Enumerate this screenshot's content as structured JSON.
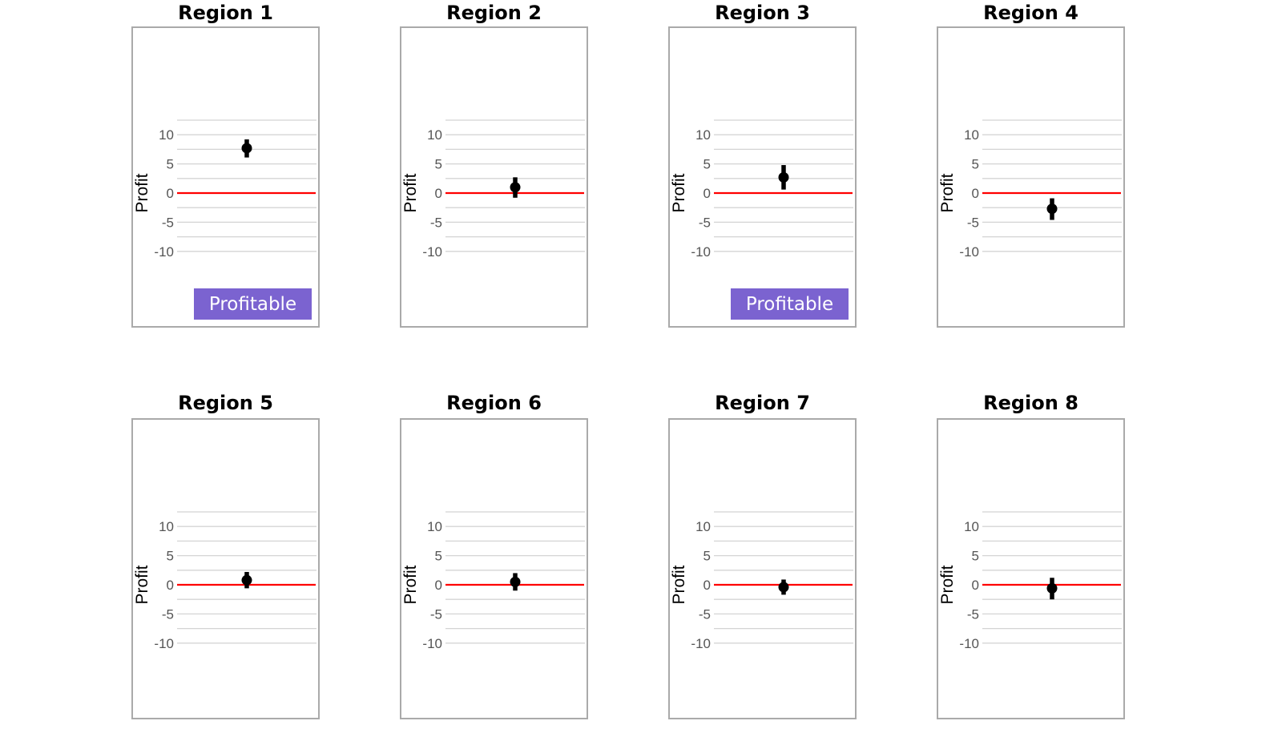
{
  "chart_data": [
    {
      "type": "errorbar",
      "title": "Region 1",
      "ylabel": "Profit",
      "ylim": [
        -11.5,
        13.5
      ],
      "yticks": [
        "10",
        "5",
        "0",
        "-5",
        "-10"
      ],
      "grid": true,
      "reference_line": {
        "y": 0,
        "color": "#ff0000"
      },
      "point": {
        "estimate": 7.7,
        "lower": 6.1,
        "upper": 9.2
      },
      "badge": "Profitable"
    },
    {
      "type": "errorbar",
      "title": "Region 2",
      "ylabel": "Profit",
      "ylim": [
        -11.5,
        13.5
      ],
      "yticks": [
        "10",
        "5",
        "0",
        "-5",
        "-10"
      ],
      "grid": true,
      "reference_line": {
        "y": 0,
        "color": "#ff0000"
      },
      "point": {
        "estimate": 1.0,
        "lower": -0.8,
        "upper": 2.7
      },
      "badge": ""
    },
    {
      "type": "errorbar",
      "title": "Region 3",
      "ylabel": "Profit",
      "ylim": [
        -11.5,
        13.5
      ],
      "yticks": [
        "10",
        "5",
        "0",
        "-5",
        "-10"
      ],
      "grid": true,
      "reference_line": {
        "y": 0,
        "color": "#ff0000"
      },
      "point": {
        "estimate": 2.7,
        "lower": 0.6,
        "upper": 4.8
      },
      "badge": "Profitable"
    },
    {
      "type": "errorbar",
      "title": "Region 4",
      "ylabel": "Profit",
      "ylim": [
        -11.5,
        13.5
      ],
      "yticks": [
        "10",
        "5",
        "0",
        "-5",
        "-10"
      ],
      "grid": true,
      "reference_line": {
        "y": 0,
        "color": "#ff0000"
      },
      "point": {
        "estimate": -2.7,
        "lower": -4.6,
        "upper": -0.9
      },
      "badge": ""
    },
    {
      "type": "errorbar",
      "title": "Region 5",
      "ylabel": "Profit",
      "ylim": [
        -11.5,
        13.5
      ],
      "yticks": [
        "10",
        "5",
        "0",
        "-5",
        "-10"
      ],
      "grid": true,
      "reference_line": {
        "y": 0,
        "color": "#ff0000"
      },
      "point": {
        "estimate": 0.8,
        "lower": -0.6,
        "upper": 2.2
      },
      "badge": ""
    },
    {
      "type": "errorbar",
      "title": "Region 6",
      "ylabel": "Profit",
      "ylim": [
        -11.5,
        13.5
      ],
      "yticks": [
        "10",
        "5",
        "0",
        "-5",
        "-10"
      ],
      "grid": true,
      "reference_line": {
        "y": 0,
        "color": "#ff0000"
      },
      "point": {
        "estimate": 0.5,
        "lower": -1.0,
        "upper": 2.0
      },
      "badge": ""
    },
    {
      "type": "errorbar",
      "title": "Region 7",
      "ylabel": "Profit",
      "ylim": [
        -11.5,
        13.5
      ],
      "yticks": [
        "10",
        "5",
        "0",
        "-5",
        "-10"
      ],
      "grid": true,
      "reference_line": {
        "y": 0,
        "color": "#ff0000"
      },
      "point": {
        "estimate": -0.4,
        "lower": -1.7,
        "upper": 0.9
      },
      "badge": ""
    },
    {
      "type": "errorbar",
      "title": "Region 8",
      "ylabel": "Profit",
      "ylim": [
        -11.5,
        13.5
      ],
      "yticks": [
        "10",
        "5",
        "0",
        "-5",
        "-10"
      ],
      "grid": true,
      "reference_line": {
        "y": 0,
        "color": "#ff0000"
      },
      "point": {
        "estimate": -0.6,
        "lower": -2.5,
        "upper": 1.2
      },
      "badge": ""
    }
  ],
  "colors": {
    "badge": "#7b63d0",
    "reference_line": "#ff0000",
    "marker": "#000000",
    "grid": "#d4d4d4",
    "frame": "#aaaaaa"
  }
}
